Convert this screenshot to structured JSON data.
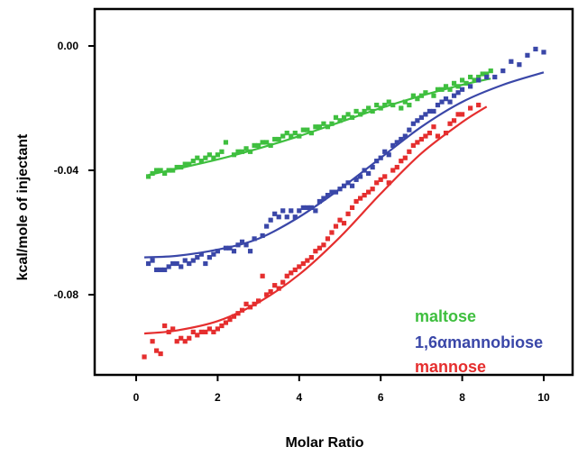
{
  "chart_data": {
    "type": "scatter",
    "title": "",
    "xlabel": "Molar Ratio",
    "ylabel": "kcal/mole of injectant",
    "xlim": [
      -1,
      11
    ],
    "ylim": [
      -0.12,
      0.01
    ],
    "xticks": [
      0,
      2,
      4,
      6,
      8,
      10
    ],
    "xtick_labels": [
      "0",
      "2",
      "4",
      "6",
      "8",
      "10"
    ],
    "yticks": [
      0.0,
      -0.04,
      -0.08
    ],
    "ytick_labels": [
      "0.00",
      "-0.04",
      "-0.08"
    ],
    "grid": false,
    "legend_position": "bottom-right",
    "legend": [
      {
        "label": "maltose",
        "color": "#3fbf3f"
      },
      {
        "label": "1,6αmannobiose",
        "color": "#3a47a8"
      },
      {
        "label": "mannose",
        "color": "#e52e2e"
      }
    ],
    "series": [
      {
        "name": "maltose",
        "color": "#3fbf3f",
        "points": [
          [
            0.3,
            -0.042
          ],
          [
            0.4,
            -0.041
          ],
          [
            0.5,
            -0.04
          ],
          [
            0.6,
            -0.04
          ],
          [
            0.7,
            -0.041
          ],
          [
            0.8,
            -0.04
          ],
          [
            0.9,
            -0.04
          ],
          [
            1.0,
            -0.039
          ],
          [
            1.1,
            -0.039
          ],
          [
            1.2,
            -0.038
          ],
          [
            1.3,
            -0.038
          ],
          [
            1.4,
            -0.037
          ],
          [
            1.5,
            -0.036
          ],
          [
            1.6,
            -0.037
          ],
          [
            1.7,
            -0.036
          ],
          [
            1.8,
            -0.035
          ],
          [
            1.9,
            -0.036
          ],
          [
            2.0,
            -0.035
          ],
          [
            2.1,
            -0.034
          ],
          [
            2.2,
            -0.031
          ],
          [
            2.4,
            -0.035
          ],
          [
            2.5,
            -0.034
          ],
          [
            2.6,
            -0.034
          ],
          [
            2.7,
            -0.033
          ],
          [
            2.8,
            -0.034
          ],
          [
            2.9,
            -0.032
          ],
          [
            3.0,
            -0.032
          ],
          [
            3.1,
            -0.031
          ],
          [
            3.2,
            -0.031
          ],
          [
            3.3,
            -0.032
          ],
          [
            3.4,
            -0.03
          ],
          [
            3.5,
            -0.03
          ],
          [
            3.6,
            -0.029
          ],
          [
            3.7,
            -0.028
          ],
          [
            3.8,
            -0.029
          ],
          [
            3.9,
            -0.028
          ],
          [
            4.0,
            -0.029
          ],
          [
            4.1,
            -0.027
          ],
          [
            4.2,
            -0.027
          ],
          [
            4.3,
            -0.028
          ],
          [
            4.4,
            -0.026
          ],
          [
            4.5,
            -0.026
          ],
          [
            4.6,
            -0.025
          ],
          [
            4.7,
            -0.026
          ],
          [
            4.8,
            -0.025
          ],
          [
            4.9,
            -0.023
          ],
          [
            5.0,
            -0.024
          ],
          [
            5.1,
            -0.023
          ],
          [
            5.2,
            -0.022
          ],
          [
            5.3,
            -0.023
          ],
          [
            5.4,
            -0.021
          ],
          [
            5.5,
            -0.022
          ],
          [
            5.6,
            -0.021
          ],
          [
            5.7,
            -0.02
          ],
          [
            5.8,
            -0.021
          ],
          [
            5.9,
            -0.019
          ],
          [
            6.0,
            -0.02
          ],
          [
            6.1,
            -0.019
          ],
          [
            6.2,
            -0.018
          ],
          [
            6.3,
            -0.019
          ],
          [
            6.5,
            -0.02
          ],
          [
            6.6,
            -0.018
          ],
          [
            6.7,
            -0.019
          ],
          [
            6.8,
            -0.016
          ],
          [
            6.9,
            -0.017
          ],
          [
            7.0,
            -0.016
          ],
          [
            7.1,
            -0.015
          ],
          [
            7.3,
            -0.016
          ],
          [
            7.4,
            -0.014
          ],
          [
            7.5,
            -0.014
          ],
          [
            7.6,
            -0.013
          ],
          [
            7.7,
            -0.014
          ],
          [
            7.8,
            -0.012
          ],
          [
            7.9,
            -0.013
          ],
          [
            8.0,
            -0.011
          ],
          [
            8.1,
            -0.012
          ],
          [
            8.2,
            -0.01
          ],
          [
            8.3,
            -0.011
          ],
          [
            8.4,
            -0.01
          ],
          [
            8.5,
            -0.009
          ],
          [
            8.6,
            -0.009
          ],
          [
            8.7,
            -0.008
          ]
        ],
        "fit": [
          [
            0.3,
            -0.0415
          ],
          [
            1.0,
            -0.0395
          ],
          [
            2.0,
            -0.0365
          ],
          [
            3.0,
            -0.033
          ],
          [
            4.0,
            -0.029
          ],
          [
            5.0,
            -0.0245
          ],
          [
            6.0,
            -0.02
          ],
          [
            7.0,
            -0.016
          ],
          [
            8.0,
            -0.0125
          ],
          [
            8.7,
            -0.0105
          ]
        ]
      },
      {
        "name": "1,6αmannobiose",
        "color": "#3a47a8",
        "points": [
          [
            0.3,
            -0.07
          ],
          [
            0.4,
            -0.069
          ],
          [
            0.5,
            -0.072
          ],
          [
            0.6,
            -0.072
          ],
          [
            0.7,
            -0.072
          ],
          [
            0.8,
            -0.071
          ],
          [
            0.9,
            -0.07
          ],
          [
            1.0,
            -0.07
          ],
          [
            1.1,
            -0.071
          ],
          [
            1.2,
            -0.069
          ],
          [
            1.3,
            -0.07
          ],
          [
            1.4,
            -0.069
          ],
          [
            1.5,
            -0.068
          ],
          [
            1.6,
            -0.067
          ],
          [
            1.7,
            -0.07
          ],
          [
            1.8,
            -0.068
          ],
          [
            1.9,
            -0.067
          ],
          [
            2.0,
            -0.066
          ],
          [
            2.2,
            -0.065
          ],
          [
            2.3,
            -0.065
          ],
          [
            2.4,
            -0.066
          ],
          [
            2.5,
            -0.064
          ],
          [
            2.6,
            -0.063
          ],
          [
            2.7,
            -0.064
          ],
          [
            2.8,
            -0.066
          ],
          [
            2.9,
            -0.062
          ],
          [
            3.1,
            -0.061
          ],
          [
            3.2,
            -0.058
          ],
          [
            3.3,
            -0.056
          ],
          [
            3.4,
            -0.054
          ],
          [
            3.5,
            -0.055
          ],
          [
            3.6,
            -0.053
          ],
          [
            3.7,
            -0.055
          ],
          [
            3.8,
            -0.053
          ],
          [
            3.9,
            -0.055
          ],
          [
            4.0,
            -0.053
          ],
          [
            4.1,
            -0.052
          ],
          [
            4.2,
            -0.052
          ],
          [
            4.3,
            -0.052
          ],
          [
            4.4,
            -0.053
          ],
          [
            4.5,
            -0.05
          ],
          [
            4.6,
            -0.049
          ],
          [
            4.7,
            -0.048
          ],
          [
            4.8,
            -0.047
          ],
          [
            4.9,
            -0.047
          ],
          [
            5.0,
            -0.046
          ],
          [
            5.1,
            -0.045
          ],
          [
            5.2,
            -0.044
          ],
          [
            5.3,
            -0.045
          ],
          [
            5.4,
            -0.043
          ],
          [
            5.5,
            -0.042
          ],
          [
            5.6,
            -0.04
          ],
          [
            5.7,
            -0.041
          ],
          [
            5.8,
            -0.039
          ],
          [
            5.9,
            -0.037
          ],
          [
            6.0,
            -0.036
          ],
          [
            6.1,
            -0.034
          ],
          [
            6.2,
            -0.035
          ],
          [
            6.3,
            -0.032
          ],
          [
            6.4,
            -0.031
          ],
          [
            6.5,
            -0.03
          ],
          [
            6.6,
            -0.029
          ],
          [
            6.7,
            -0.027
          ],
          [
            6.8,
            -0.025
          ],
          [
            6.9,
            -0.024
          ],
          [
            7.0,
            -0.023
          ],
          [
            7.1,
            -0.022
          ],
          [
            7.2,
            -0.021
          ],
          [
            7.3,
            -0.021
          ],
          [
            7.4,
            -0.019
          ],
          [
            7.5,
            -0.018
          ],
          [
            7.6,
            -0.017
          ],
          [
            7.7,
            -0.018
          ],
          [
            7.8,
            -0.016
          ],
          [
            7.9,
            -0.015
          ],
          [
            8.0,
            -0.014
          ],
          [
            8.2,
            -0.013
          ],
          [
            8.4,
            -0.011
          ],
          [
            8.6,
            -0.01
          ],
          [
            8.8,
            -0.01
          ],
          [
            9.0,
            -0.008
          ],
          [
            9.2,
            -0.005
          ],
          [
            9.4,
            -0.006
          ],
          [
            9.6,
            -0.003
          ],
          [
            9.8,
            -0.001
          ],
          [
            10.0,
            -0.002
          ]
        ],
        "fit": [
          [
            0.2,
            -0.068
          ],
          [
            1.0,
            -0.0675
          ],
          [
            2.0,
            -0.0655
          ],
          [
            3.0,
            -0.062
          ],
          [
            4.0,
            -0.055
          ],
          [
            5.0,
            -0.046
          ],
          [
            6.0,
            -0.036
          ],
          [
            7.0,
            -0.026
          ],
          [
            8.0,
            -0.018
          ],
          [
            9.0,
            -0.0125
          ],
          [
            10.0,
            -0.0085
          ]
        ]
      },
      {
        "name": "mannose",
        "color": "#e52e2e",
        "points": [
          [
            0.2,
            -0.1
          ],
          [
            0.4,
            -0.095
          ],
          [
            0.5,
            -0.098
          ],
          [
            0.6,
            -0.099
          ],
          [
            0.7,
            -0.09
          ],
          [
            0.8,
            -0.092
          ],
          [
            0.9,
            -0.091
          ],
          [
            1.0,
            -0.095
          ],
          [
            1.1,
            -0.094
          ],
          [
            1.2,
            -0.095
          ],
          [
            1.3,
            -0.094
          ],
          [
            1.4,
            -0.092
          ],
          [
            1.5,
            -0.093
          ],
          [
            1.6,
            -0.092
          ],
          [
            1.7,
            -0.092
          ],
          [
            1.8,
            -0.091
          ],
          [
            1.9,
            -0.092
          ],
          [
            2.0,
            -0.091
          ],
          [
            2.1,
            -0.09
          ],
          [
            2.2,
            -0.089
          ],
          [
            2.3,
            -0.088
          ],
          [
            2.4,
            -0.087
          ],
          [
            2.5,
            -0.086
          ],
          [
            2.6,
            -0.085
          ],
          [
            2.7,
            -0.083
          ],
          [
            2.8,
            -0.084
          ],
          [
            2.9,
            -0.083
          ],
          [
            3.0,
            -0.082
          ],
          [
            3.1,
            -0.074
          ],
          [
            3.2,
            -0.08
          ],
          [
            3.3,
            -0.079
          ],
          [
            3.4,
            -0.077
          ],
          [
            3.5,
            -0.078
          ],
          [
            3.6,
            -0.076
          ],
          [
            3.7,
            -0.074
          ],
          [
            3.8,
            -0.073
          ],
          [
            3.9,
            -0.072
          ],
          [
            4.0,
            -0.071
          ],
          [
            4.1,
            -0.07
          ],
          [
            4.2,
            -0.069
          ],
          [
            4.3,
            -0.068
          ],
          [
            4.4,
            -0.066
          ],
          [
            4.5,
            -0.065
          ],
          [
            4.6,
            -0.064
          ],
          [
            4.7,
            -0.062
          ],
          [
            4.8,
            -0.06
          ],
          [
            4.9,
            -0.058
          ],
          [
            5.0,
            -0.056
          ],
          [
            5.1,
            -0.057
          ],
          [
            5.2,
            -0.054
          ],
          [
            5.3,
            -0.052
          ],
          [
            5.4,
            -0.05
          ],
          [
            5.5,
            -0.049
          ],
          [
            5.6,
            -0.048
          ],
          [
            5.7,
            -0.047
          ],
          [
            5.8,
            -0.046
          ],
          [
            5.9,
            -0.044
          ],
          [
            6.0,
            -0.043
          ],
          [
            6.1,
            -0.042
          ],
          [
            6.2,
            -0.044
          ],
          [
            6.3,
            -0.04
          ],
          [
            6.4,
            -0.039
          ],
          [
            6.5,
            -0.037
          ],
          [
            6.6,
            -0.036
          ],
          [
            6.7,
            -0.034
          ],
          [
            6.8,
            -0.032
          ],
          [
            6.9,
            -0.031
          ],
          [
            7.0,
            -0.03
          ],
          [
            7.1,
            -0.029
          ],
          [
            7.2,
            -0.028
          ],
          [
            7.3,
            -0.026
          ],
          [
            7.4,
            -0.029
          ],
          [
            7.6,
            -0.028
          ],
          [
            7.7,
            -0.025
          ],
          [
            7.8,
            -0.024
          ],
          [
            7.9,
            -0.022
          ],
          [
            8.0,
            -0.022
          ],
          [
            8.2,
            -0.02
          ],
          [
            8.4,
            -0.019
          ]
        ],
        "fit": [
          [
            0.2,
            -0.0925
          ],
          [
            1.0,
            -0.0915
          ],
          [
            2.0,
            -0.0885
          ],
          [
            3.0,
            -0.0825
          ],
          [
            4.0,
            -0.0735
          ],
          [
            5.0,
            -0.0615
          ],
          [
            6.0,
            -0.0475
          ],
          [
            7.0,
            -0.0345
          ],
          [
            8.0,
            -0.0245
          ],
          [
            8.6,
            -0.0195
          ]
        ]
      }
    ]
  }
}
